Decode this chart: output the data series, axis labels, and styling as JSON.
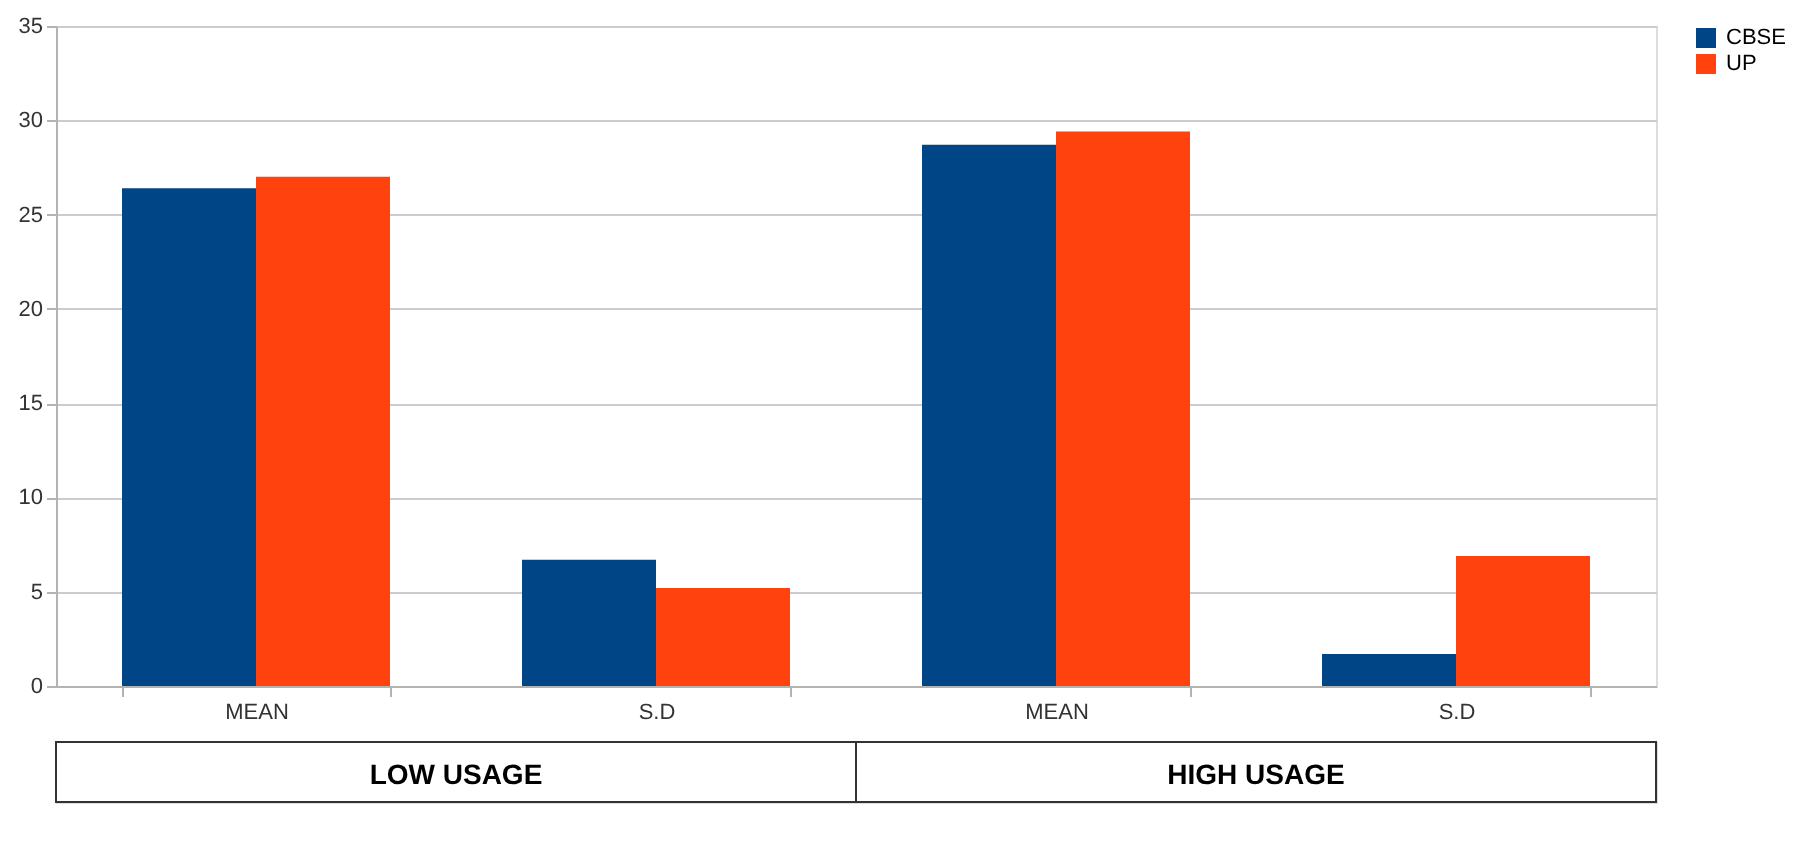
{
  "chart_data": {
    "type": "bar",
    "categories": [
      "MEAN",
      "S.D",
      "MEAN",
      "S.D"
    ],
    "series": [
      {
        "name": "CBSE",
        "color": "#004586",
        "values": [
          26.4,
          6.7,
          28.7,
          1.7
        ]
      },
      {
        "name": "UP",
        "color": "#ff420e",
        "values": [
          27.0,
          5.2,
          29.4,
          6.9
        ]
      }
    ],
    "ylim": [
      0,
      35
    ],
    "yticks": [
      0,
      5,
      10,
      15,
      20,
      25,
      30,
      35
    ],
    "grid": "y",
    "legend": "right",
    "annotations": [
      "LOW USAGE",
      "HIGH USAGE"
    ]
  }
}
